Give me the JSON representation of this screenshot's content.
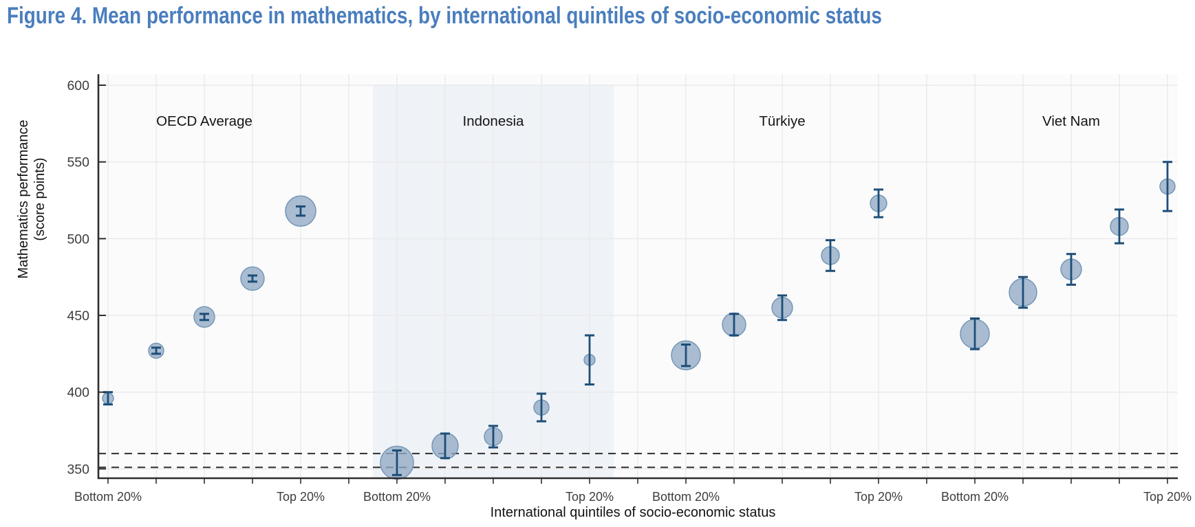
{
  "figure": {
    "title": "Figure 4. Mean performance in mathematics, by international quintiles of socio-economic status"
  },
  "chart_data": {
    "type": "scatter",
    "variant": "bubble_with_error_bars",
    "title": "Figure 4. Mean performance in mathematics, by international quintiles of socio-economic status",
    "xlabel": "International quintiles of socio-economic status",
    "ylabel_line1": "Mathematics performance",
    "ylabel_line2": "(score points)",
    "ylim": [
      342,
      607
    ],
    "yticks": [
      350,
      400,
      450,
      500,
      550,
      600
    ],
    "grid": true,
    "legend": false,
    "x_quintile_labels": {
      "first": "Bottom 20%",
      "last": "Top 20%"
    },
    "reference_lines": {
      "style": "dashed",
      "values": [
        360,
        351
      ]
    },
    "highlight_band_group": "Indonesia",
    "groups": [
      {
        "name": "OECD Average",
        "highlighted": false,
        "scores": [
          396,
          427,
          449,
          474,
          518
        ],
        "ci95": [
          4,
          2,
          2,
          2,
          3
        ],
        "bubble_radius_px": [
          8,
          11,
          15,
          17,
          22
        ]
      },
      {
        "name": "Indonesia",
        "highlighted": true,
        "scores": [
          354,
          365,
          371,
          390,
          421
        ],
        "ci95": [
          8,
          8,
          7,
          9,
          16
        ],
        "bubble_radius_px": [
          24,
          19,
          13,
          11,
          8
        ]
      },
      {
        "name": "Türkiye",
        "highlighted": false,
        "scores": [
          424,
          444,
          455,
          489,
          523
        ],
        "ci95": [
          7,
          7,
          8,
          10,
          9
        ],
        "bubble_radius_px": [
          21,
          17,
          15,
          13,
          12
        ]
      },
      {
        "name": "Viet Nam",
        "highlighted": false,
        "scores": [
          438,
          465,
          480,
          508,
          534
        ],
        "ci95": [
          10,
          10,
          10,
          11,
          16
        ],
        "bubble_radius_px": [
          21,
          20,
          15,
          13,
          11
        ]
      }
    ],
    "colors": {
      "title": "#4a7ebd",
      "bubble_fill": "#92aac4",
      "bubble_stroke": "#6f93b4",
      "error_bar": "#1d4e78",
      "band_bg": "#eff2f6",
      "plot_bg": "#fbfbfc",
      "gridline": "#e9eaec",
      "axis": "#2e2e2e",
      "reference_line": "#3a3a3a",
      "group_label_text": "#141414",
      "tick_label_text": "#3d3d3d",
      "axis_title_text": "#111111"
    }
  }
}
